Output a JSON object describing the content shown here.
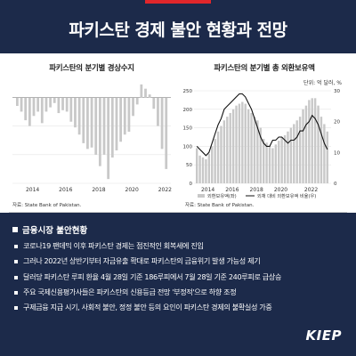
{
  "page": {
    "title": "파키스탄 경제 불안 현황과 전망",
    "logo": "KIEP"
  },
  "chart_data": [
    {
      "type": "bar",
      "title": "파키스탄의 분기별 경상수지",
      "unit_label": "",
      "source": "자료: State Bank of Pakistan.",
      "x_ticks": [
        "2014",
        "2016",
        "2018",
        "2020",
        "2022"
      ],
      "ylim": [
        -60,
        12
      ],
      "grid": true,
      "categories": [
        "2013Q1",
        "2013Q2",
        "2013Q3",
        "2013Q4",
        "2014Q1",
        "2014Q2",
        "2014Q3",
        "2014Q4",
        "2015Q1",
        "2015Q2",
        "2015Q3",
        "2015Q4",
        "2016Q1",
        "2016Q2",
        "2016Q3",
        "2016Q4",
        "2017Q1",
        "2017Q2",
        "2017Q3",
        "2017Q4",
        "2018Q1",
        "2018Q2",
        "2018Q3",
        "2018Q4",
        "2019Q1",
        "2019Q2",
        "2019Q3",
        "2019Q4",
        "2020Q1",
        "2020Q2",
        "2020Q3",
        "2020Q4",
        "2021Q1",
        "2021Q2",
        "2021Q3",
        "2021Q4",
        "2022Q1"
      ],
      "values": [
        -6,
        -10,
        -16,
        -20,
        -13,
        -10,
        -18,
        -10,
        -7,
        -4,
        -11,
        -9,
        -10,
        -17,
        -21,
        -26,
        -32,
        -36,
        -35,
        -40,
        -48,
        -40,
        -57,
        -42,
        -37,
        -31,
        -26,
        -24,
        -13,
        -5,
        9,
        6,
        2,
        -8,
        -20,
        -36,
        -50
      ]
    },
    {
      "type": "bar+line",
      "title": "파키스탄의 분기별 총 외환보유액",
      "unit_label": "단위: 억 달러, %",
      "source": "자료: State Bank of Pakistan.",
      "x_ticks": [
        "2014",
        "2016",
        "2018",
        "2020",
        "2022"
      ],
      "y_left": {
        "ticks": [
          0,
          50,
          100,
          150,
          200,
          250
        ],
        "lim": [
          0,
          250
        ]
      },
      "y_right": {
        "ticks": [
          0,
          10,
          20,
          30
        ],
        "lim": [
          0,
          30
        ]
      },
      "legend": [
        "외환보유액(좌)",
        "외채 대비 외환보유액 비율(우)"
      ],
      "legend_position": "bottom",
      "series": [
        {
          "name": "외환보유액(좌)",
          "kind": "bar",
          "axis": "left",
          "values": [
            95,
            75,
            70,
            65,
            80,
            100,
            120,
            140,
            155,
            170,
            180,
            190,
            200,
            210,
            215,
            220,
            215,
            200,
            190,
            180,
            170,
            150,
            120,
            110,
            100,
            95,
            105,
            115,
            125,
            130,
            140,
            150,
            160,
            170,
            180,
            200,
            210,
            225,
            230,
            230,
            210,
            180,
            160,
            140
          ]
        },
        {
          "name": "외채 대비 외환보유액 비율(우)",
          "kind": "line",
          "axis": "right",
          "values": [
            12,
            11,
            10,
            9,
            10,
            13,
            16,
            19,
            21,
            24,
            25,
            26,
            27,
            28,
            29,
            29,
            28,
            26,
            24,
            21,
            18,
            15,
            13,
            12,
            12,
            14,
            14,
            15,
            15,
            14,
            13,
            14,
            14,
            15,
            17,
            17,
            19,
            20,
            22,
            21,
            19,
            16,
            13,
            11
          ]
        }
      ]
    }
  ],
  "section": {
    "title": "금융시장 불안현황",
    "bullets": [
      "코로나19 팬데믹 이후 파키스탄 경제는 점진적인 회복세에 진입",
      "그러나 2022년 상반기부터 자금유출 확대로 파키스탄의 금융위기 발생 가능성 제기",
      "달러당 파키스탄 루피 환율 4월 28일 기준 186루피에서 7월 28일 기준 240루피로 급상승",
      "주요 국제신용평가사들은 파키스탄의 신용등급 전망 '부정적'으로 하향 조정",
      "구제금융 지급 시기, 사회적 불안, 정정 불안 등의 요인이 파키스탄 경제의 불확실성 가중"
    ]
  },
  "colors": {
    "header_bg": "#1c2a4a",
    "accent_red": "#e0262b",
    "bar_gray": "#c8c8c8",
    "line_black": "#111111"
  }
}
